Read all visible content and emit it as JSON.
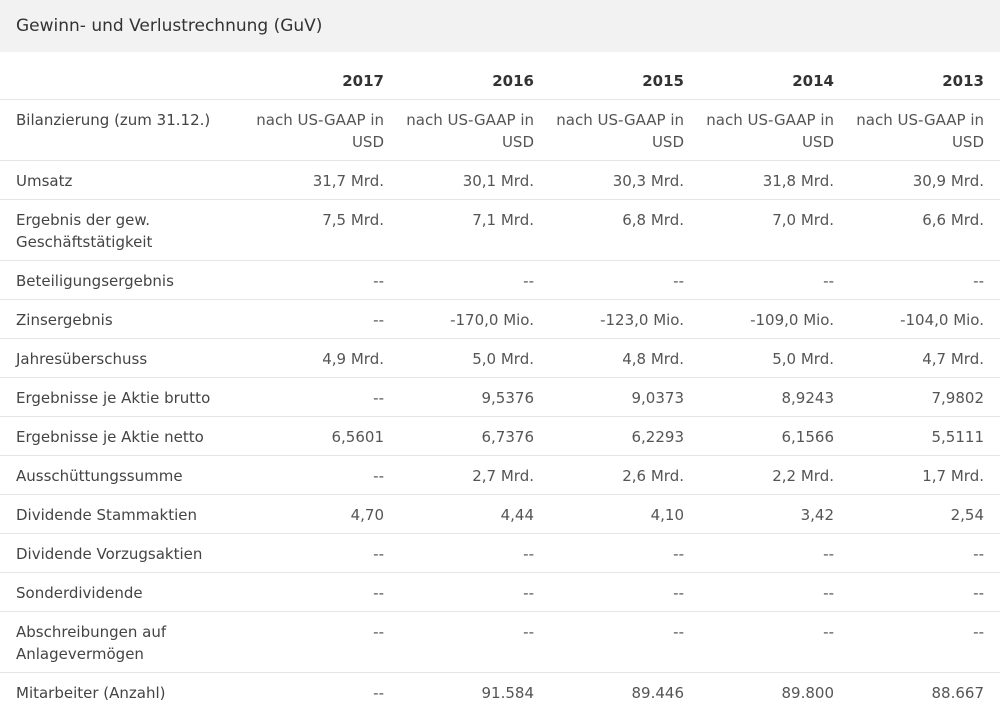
{
  "title": "Gewinn- und Verlustrechnung (GuV)",
  "columns": [
    "2017",
    "2016",
    "2015",
    "2014",
    "2013"
  ],
  "rows": [
    {
      "label": "Bilanzierung (zum 31.12.)",
      "values": [
        "nach US-GAAP in USD",
        "nach US-GAAP in USD",
        "nach US-GAAP in USD",
        "nach US-GAAP in USD",
        "nach US-GAAP in USD"
      ]
    },
    {
      "label": "Umsatz",
      "values": [
        "31,7 Mrd.",
        "30,1 Mrd.",
        "30,3 Mrd.",
        "31,8 Mrd.",
        "30,9 Mrd."
      ]
    },
    {
      "label": "Ergebnis der gew. Geschäftstätigkeit",
      "values": [
        "7,5 Mrd.",
        "7,1 Mrd.",
        "6,8 Mrd.",
        "7,0 Mrd.",
        "6,6 Mrd."
      ]
    },
    {
      "label": "Beteiligungsergebnis",
      "values": [
        "--",
        "--",
        "--",
        "--",
        "--"
      ]
    },
    {
      "label": "Zinsergebnis",
      "values": [
        "--",
        "-170,0 Mio.",
        "-123,0 Mio.",
        "-109,0 Mio.",
        "-104,0 Mio."
      ]
    },
    {
      "label": "Jahresüberschuss",
      "values": [
        "4,9 Mrd.",
        "5,0 Mrd.",
        "4,8 Mrd.",
        "5,0 Mrd.",
        "4,7 Mrd."
      ]
    },
    {
      "label": "Ergebnisse je Aktie brutto",
      "values": [
        "--",
        "9,5376",
        "9,0373",
        "8,9243",
        "7,9802"
      ]
    },
    {
      "label": "Ergebnisse je Aktie netto",
      "values": [
        "6,5601",
        "6,7376",
        "6,2293",
        "6,1566",
        "5,5111"
      ]
    },
    {
      "label": "Ausschüttungssumme",
      "values": [
        "--",
        "2,7 Mrd.",
        "2,6 Mrd.",
        "2,2 Mrd.",
        "1,7 Mrd."
      ]
    },
    {
      "label": "Dividende Stammaktien",
      "values": [
        "4,70",
        "4,44",
        "4,10",
        "3,42",
        "2,54"
      ]
    },
    {
      "label": "Dividende Vorzugsaktien",
      "values": [
        "--",
        "--",
        "--",
        "--",
        "--"
      ]
    },
    {
      "label": "Sonderdividende",
      "values": [
        "--",
        "--",
        "--",
        "--",
        "--"
      ]
    },
    {
      "label": "Abschreibungen auf Anlagevermögen",
      "values": [
        "--",
        "--",
        "--",
        "--",
        "--"
      ]
    },
    {
      "label": "Mitarbeiter (Anzahl)",
      "values": [
        "--",
        "91.584",
        "89.446",
        "89.800",
        "88.667"
      ]
    }
  ]
}
